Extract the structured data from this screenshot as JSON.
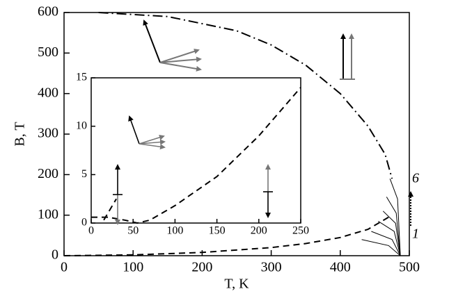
{
  "chart_data": [
    {
      "type": "line",
      "xlabel": "T, K",
      "ylabel": "B, T",
      "xlim": [
        0,
        500
      ],
      "ylim": [
        0,
        600
      ],
      "xticks": [
        0,
        100,
        200,
        300,
        400,
        500
      ],
      "yticks": [
        0,
        100,
        200,
        300,
        400,
        500,
        600
      ],
      "annotations": [
        "6",
        "1"
      ],
      "series": [
        {
          "style": "dashdot",
          "color": "#000000",
          "x": [
            50,
            150,
            250,
            300,
            350,
            400,
            440,
            465,
            475
          ],
          "values": [
            600,
            590,
            555,
            520,
            470,
            400,
            320,
            250,
            190
          ]
        },
        {
          "style": "dashed",
          "color": "#000000",
          "x": [
            0,
            100,
            200,
            300,
            350,
            400,
            440,
            470
          ],
          "values": [
            0,
            2,
            8,
            20,
            30,
            45,
            65,
            95
          ]
        },
        {
          "style": "solid",
          "color": "#000000",
          "x": [
            431,
            470,
            487
          ],
          "values": [
            40,
            25,
            0
          ]
        },
        {
          "style": "solid",
          "color": "#000000",
          "x": [
            445,
            475,
            487
          ],
          "values": [
            60,
            40,
            0
          ]
        },
        {
          "style": "solid",
          "color": "#000000",
          "x": [
            455,
            478,
            487
          ],
          "values": [
            85,
            60,
            0
          ]
        },
        {
          "style": "solid",
          "color": "#000000",
          "x": [
            462,
            480,
            487
          ],
          "values": [
            110,
            80,
            0
          ]
        },
        {
          "style": "solid",
          "color": "#000000",
          "x": [
            467,
            481,
            487
          ],
          "values": [
            145,
            105,
            0
          ]
        },
        {
          "style": "solid",
          "color": "#000000",
          "x": [
            472,
            483,
            487
          ],
          "values": [
            190,
            140,
            0
          ]
        }
      ]
    },
    {
      "type": "line",
      "inset": true,
      "xlim": [
        0,
        250
      ],
      "ylim": [
        0,
        15
      ],
      "xticks": [
        0,
        50,
        100,
        150,
        200,
        250
      ],
      "yticks": [
        0,
        5,
        10,
        15
      ],
      "series": [
        {
          "style": "dashed",
          "color": "#000000",
          "x": [
            0,
            20,
            40,
            55,
            70,
            100,
            150,
            200,
            250
          ],
          "values": [
            0.6,
            0.6,
            0.3,
            0,
            0.3,
            1.8,
            4.8,
            9,
            14
          ]
        },
        {
          "style": "dashed",
          "color": "#000000",
          "x": [
            15,
            30
          ],
          "values": [
            0.3,
            2.5
          ]
        }
      ]
    }
  ]
}
